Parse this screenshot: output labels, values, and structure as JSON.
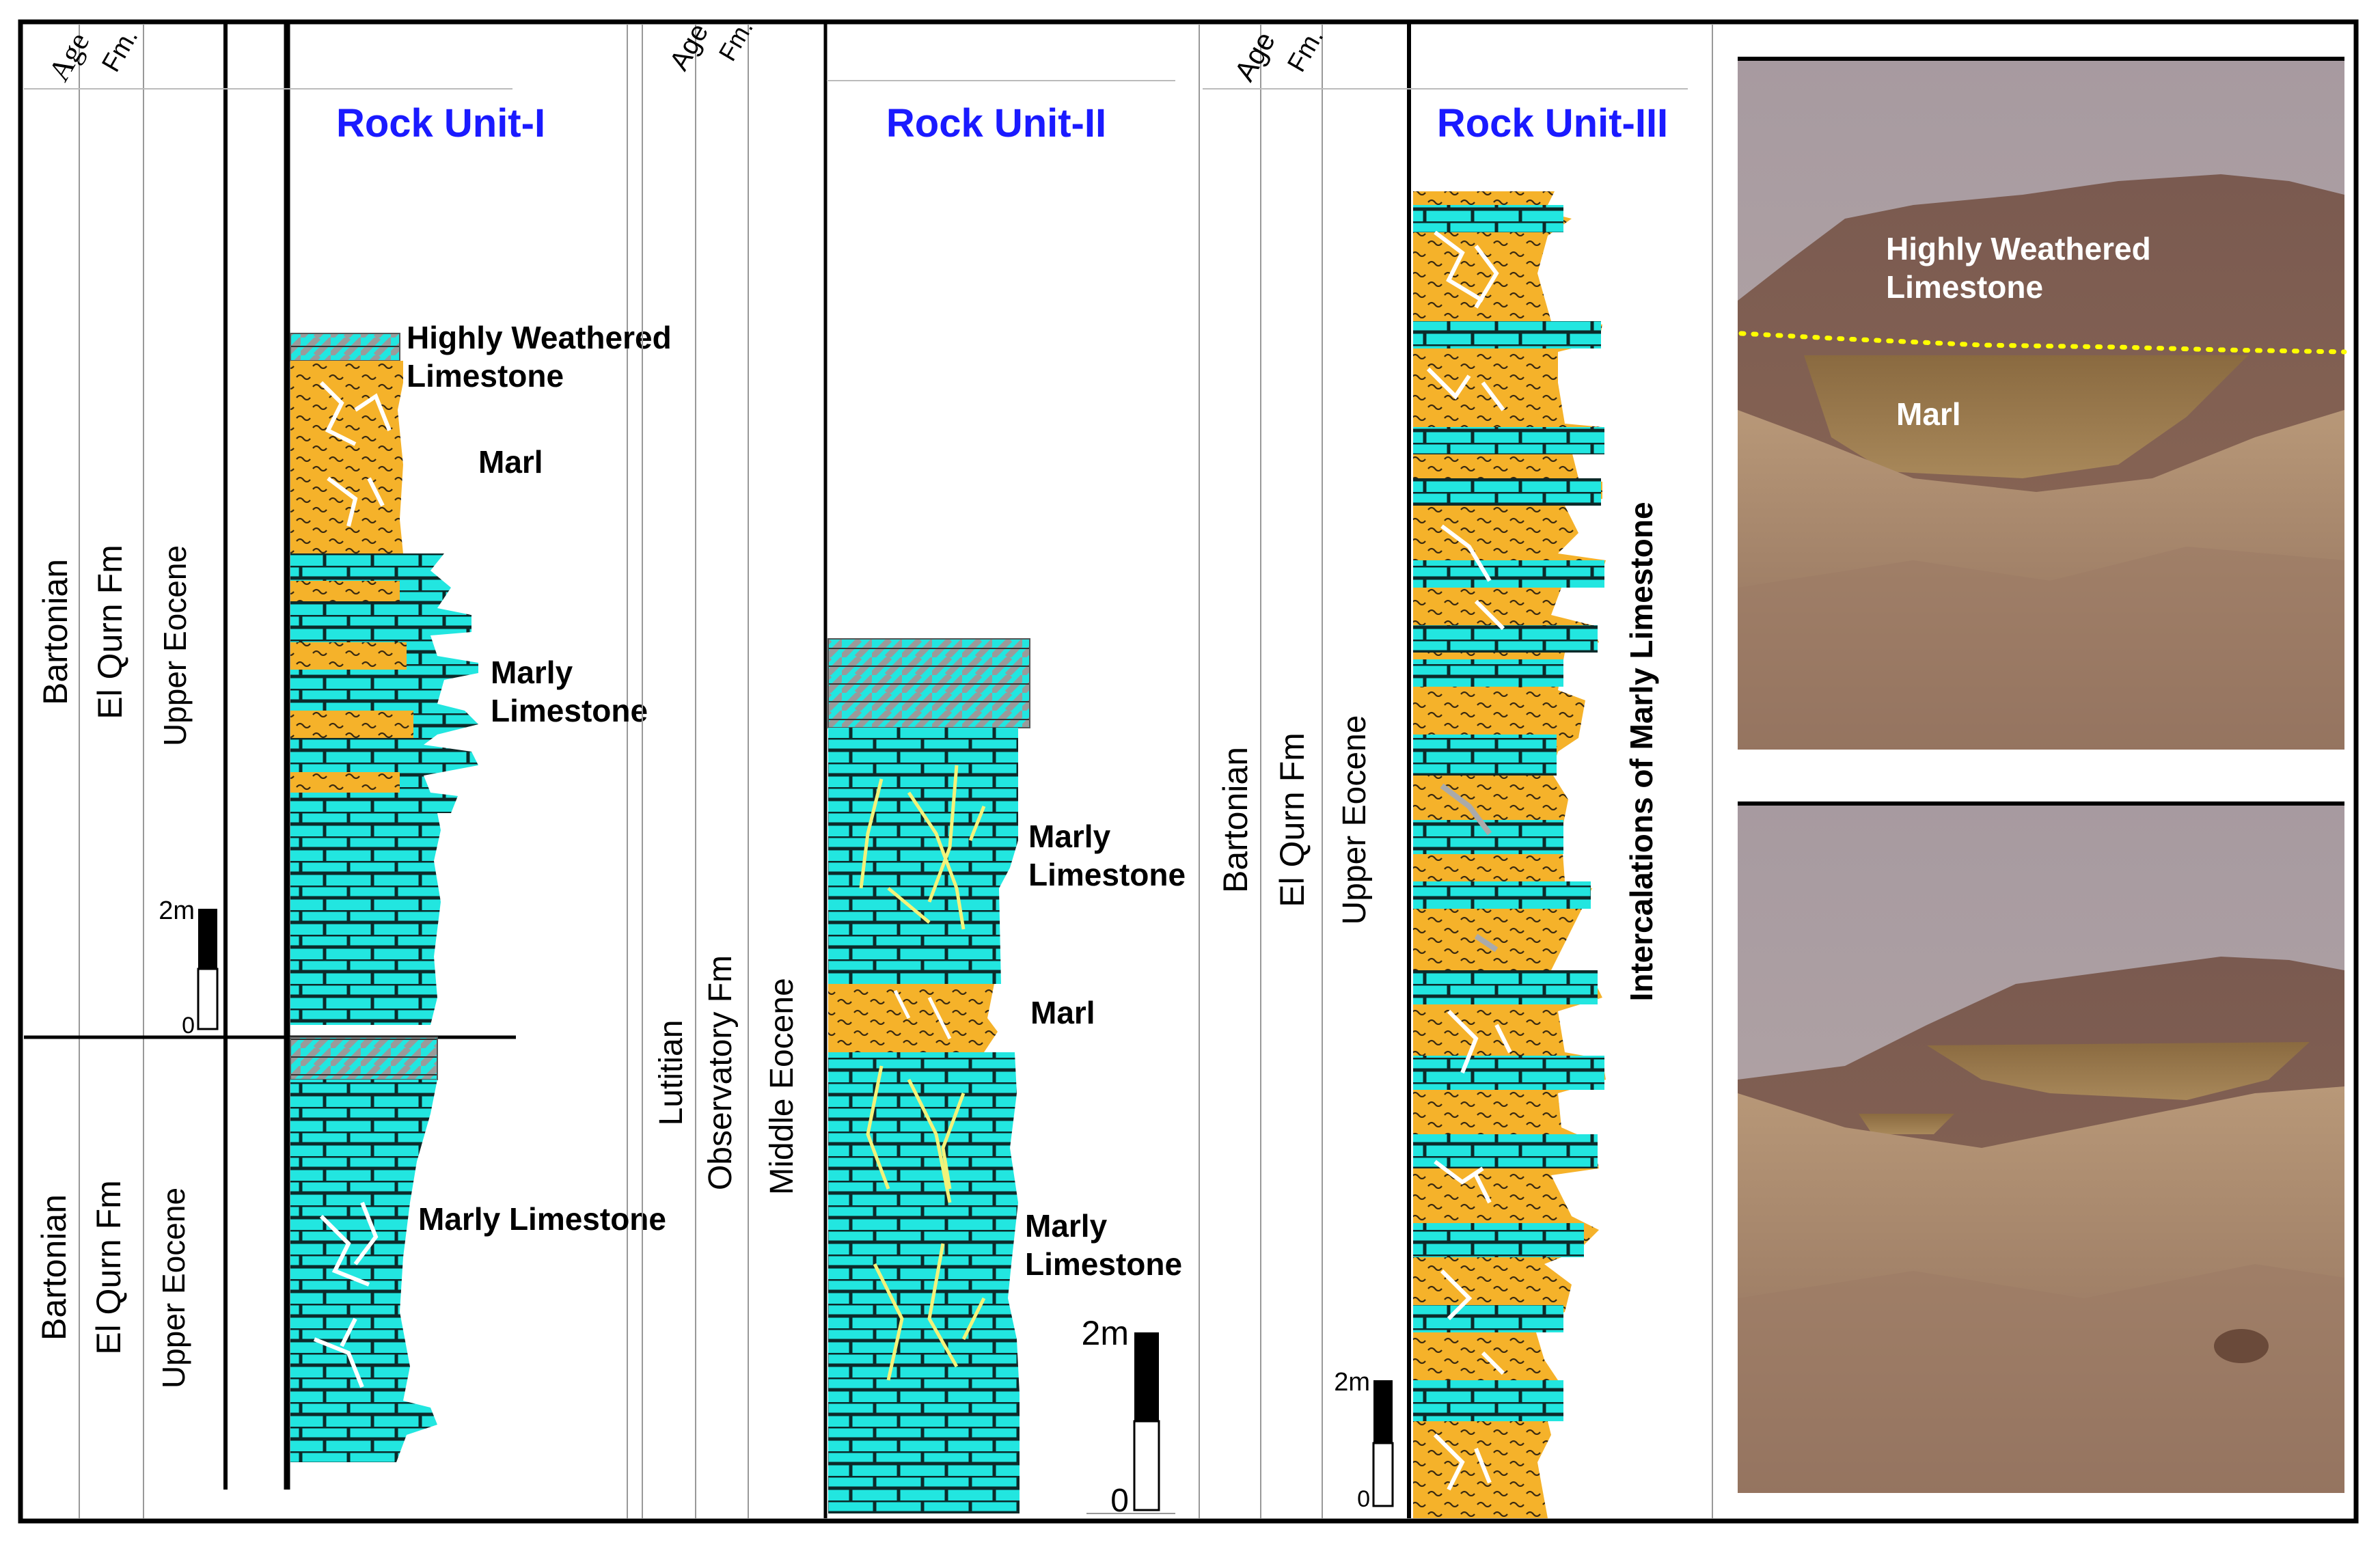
{
  "headers": {
    "age": "Age",
    "formation": "Fm."
  },
  "unit1": {
    "title": "Rock Unit-I",
    "upper": {
      "stage": "Bartonian",
      "formation": "El Qurn Fm",
      "epoch": "Upper Eocene"
    },
    "lower": {
      "stage": "Bartonian",
      "formation": "El Qurn Fm",
      "epoch": "Upper Eocene"
    },
    "labels": {
      "highly_weathered_1": "Highly Weathered",
      "highly_weathered_2": "Limestone",
      "marl": "Marl",
      "marly_1": "Marly",
      "marly_2": "Limestone",
      "marly_limestone": "Marly Limestone"
    },
    "scale": {
      "top": "2m",
      "bottom": "0"
    }
  },
  "unit2": {
    "title": "Rock Unit-II",
    "stage": "Lutitian",
    "formation": "Observatory Fm",
    "epoch": "Middle Eocene",
    "labels": {
      "marly_a_1": "Marly",
      "marly_a_2": "Limestone",
      "marl": "Marl",
      "marly_b_1": "Marly",
      "marly_b_2": "Limestone"
    },
    "scale": {
      "top": "2m",
      "bottom": "0"
    }
  },
  "unit3": {
    "title": "Rock Unit-III",
    "stage": "Bartonian",
    "formation": "El Qurn Fm",
    "epoch": "Upper Eocene",
    "side_label": "Intercalations of Marly  Limestone",
    "scale": {
      "top": "2m",
      "bottom": "0"
    }
  },
  "photo_top": {
    "label_1": "Highly Weathered",
    "label_2": "Limestone",
    "label_3": "Marl"
  },
  "colors": {
    "limestone": "#22e6e0",
    "marl": "#f5b22a",
    "weathered": "#9a9a9a",
    "title_blue": "#1a1aff",
    "contact_line": "#ffff00"
  }
}
